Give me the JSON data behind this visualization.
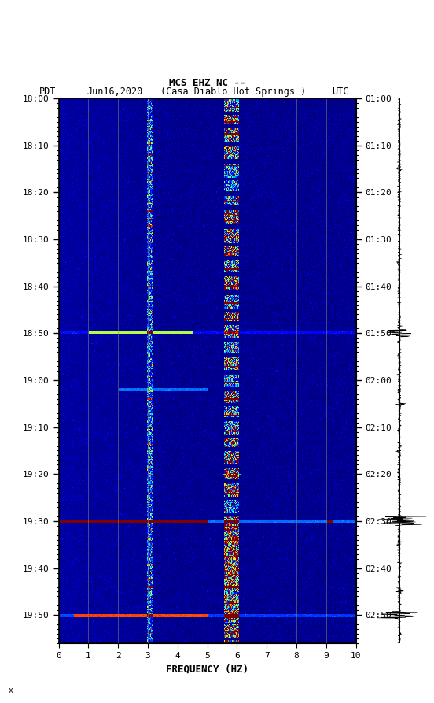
{
  "title_line1": "MCS EHZ NC --",
  "title_line2_pdt": "PDT    Jun16,2020     (Casa Diablo Hot Springs )              UTC",
  "xlabel": "FREQUENCY (HZ)",
  "freq_min": 0,
  "freq_max": 10,
  "pdt_ticks": [
    "18:00",
    "18:10",
    "18:20",
    "18:30",
    "18:40",
    "18:50",
    "19:00",
    "19:10",
    "19:20",
    "19:30",
    "19:40",
    "19:50"
  ],
  "utc_ticks": [
    "01:00",
    "01:10",
    "01:20",
    "01:30",
    "01:40",
    "01:50",
    "02:00",
    "02:10",
    "02:20",
    "02:30",
    "02:40",
    "02:50"
  ],
  "freq_ticks": [
    0,
    1,
    2,
    3,
    4,
    5,
    6,
    7,
    8,
    9,
    10
  ],
  "vertical_lines_freq": [
    1.0,
    2.0,
    3.0,
    4.0,
    5.0,
    6.0,
    7.0,
    8.0,
    9.0
  ],
  "fig_bg": "#ffffff",
  "fig_width": 5.52,
  "fig_height": 8.93,
  "n_time": 580,
  "n_freq": 400,
  "total_minutes": 116
}
